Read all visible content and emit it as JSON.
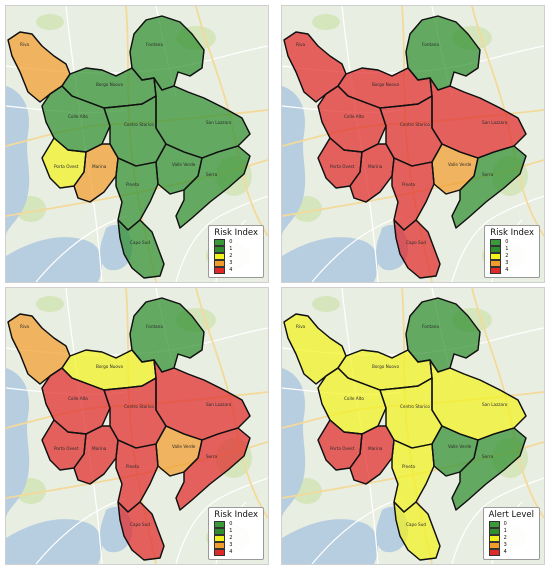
{
  "palette": {
    "sea": "#b7cde0",
    "land": "#e9eee2",
    "park": "#cfe3b4",
    "road_main": "#f3d99a",
    "road_minor": "#ffffff",
    "border": "#1c1c1c",
    "level_colors": [
      "#3a9a3a",
      "#2f8f2f",
      "#f2f21e",
      "#f29c2c",
      "#e02a2a"
    ]
  },
  "districts": [
    {
      "id": "A",
      "label": "Riva"
    },
    {
      "id": "B",
      "label": "Fontana"
    },
    {
      "id": "C",
      "label": "Borgo Nuovo"
    },
    {
      "id": "D",
      "label": "San Lazzaro"
    },
    {
      "id": "E",
      "label": "Colle Alto"
    },
    {
      "id": "F",
      "label": "Centro Storico"
    },
    {
      "id": "G",
      "label": "Porta Ovest"
    },
    {
      "id": "H",
      "label": "Marina"
    },
    {
      "id": "I",
      "label": "Valle Verde"
    },
    {
      "id": "J",
      "label": "Pineta"
    },
    {
      "id": "K",
      "label": "Serra"
    },
    {
      "id": "L",
      "label": "Capo Sud"
    }
  ],
  "panels": [
    {
      "id": "top-left",
      "legend_title": "Risk Index",
      "legend_labels": [
        "0",
        "1",
        "2",
        "3",
        "4"
      ],
      "levels": {
        "A": 3,
        "B": 1,
        "C": 1,
        "D": 1,
        "E": 1,
        "F": 1,
        "G": 2,
        "H": 3,
        "I": 1,
        "J": 1,
        "K": 1,
        "L": 1
      }
    },
    {
      "id": "top-right",
      "legend_title": "Risk Index",
      "legend_labels": [
        "0",
        "1",
        "2",
        "3",
        "4"
      ],
      "levels": {
        "A": 4,
        "B": 1,
        "C": 4,
        "D": 4,
        "E": 4,
        "F": 4,
        "G": 4,
        "H": 4,
        "I": 3,
        "J": 4,
        "K": 1,
        "L": 4
      }
    },
    {
      "id": "bottom-left",
      "legend_title": "Risk Index",
      "legend_labels": [
        "0",
        "1",
        "2",
        "3",
        "4"
      ],
      "levels": {
        "A": 3,
        "B": 1,
        "C": 2,
        "D": 4,
        "E": 4,
        "F": 4,
        "G": 4,
        "H": 4,
        "I": 3,
        "J": 4,
        "K": 4,
        "L": 4
      }
    },
    {
      "id": "bottom-right",
      "legend_title": "Alert Level",
      "legend_labels": [
        "0",
        "1",
        "2",
        "3",
        "4"
      ],
      "levels": {
        "A": 2,
        "B": 1,
        "C": 2,
        "D": 2,
        "E": 2,
        "F": 2,
        "G": 4,
        "H": 4,
        "I": 1,
        "J": 2,
        "K": 1,
        "L": 2
      }
    }
  ]
}
